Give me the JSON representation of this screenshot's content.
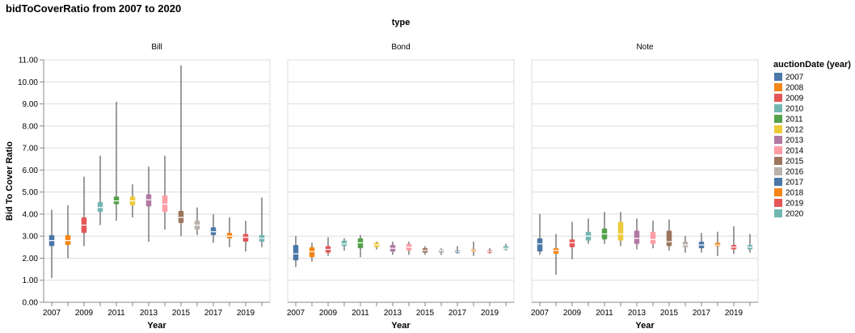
{
  "chart_data": {
    "type": "boxplot",
    "title": "bidToCoverRatio from 2007 to 2020",
    "facet_title": "type",
    "facets": [
      "Bill",
      "Bond",
      "Note"
    ],
    "xlabel": "Year",
    "ylabel": "Bid To Cover Ratio",
    "ylim": [
      0,
      11
    ],
    "y_ticks": [
      "0.00",
      "1.00",
      "2.00",
      "3.00",
      "4.00",
      "5.00",
      "6.00",
      "7.00",
      "8.00",
      "9.00",
      "10.00",
      "11.00"
    ],
    "x_tick_labels": [
      "2007",
      "2009",
      "2011",
      "2013",
      "2015",
      "2017",
      "2019"
    ],
    "grid": true,
    "legend": {
      "title": "auctionDate (year)",
      "position": "right",
      "items": [
        "2007",
        "2008",
        "2009",
        "2010",
        "2011",
        "2012",
        "2013",
        "2014",
        "2015",
        "2016",
        "2017",
        "2018",
        "2019",
        "2020"
      ]
    },
    "colors": {
      "2007": "#4c78a8",
      "2008": "#f58518",
      "2009": "#e45756",
      "2010": "#72b7b2",
      "2011": "#54a24b",
      "2012": "#eeca3b",
      "2013": "#b279a2",
      "2014": "#ff9da6",
      "2015": "#9d755d",
      "2016": "#bab0ac",
      "2017": "#4c78a8",
      "2018": "#f58518",
      "2019": "#e45756",
      "2020": "#72b7b2"
    },
    "years": [
      2007,
      2008,
      2009,
      2010,
      2011,
      2012,
      2013,
      2014,
      2015,
      2016,
      2017,
      2018,
      2019,
      2020
    ],
    "series": [
      {
        "name": "Bill",
        "boxes": [
          {
            "year": 2007,
            "min": 1.1,
            "q1": 2.55,
            "median": 2.8,
            "q3": 3.05,
            "max": 4.2
          },
          {
            "year": 2008,
            "min": 2.0,
            "q1": 2.6,
            "median": 2.8,
            "q3": 3.05,
            "max": 4.4
          },
          {
            "year": 2009,
            "min": 2.55,
            "q1": 3.15,
            "median": 3.5,
            "q3": 3.85,
            "max": 5.7
          },
          {
            "year": 2010,
            "min": 3.5,
            "q1": 4.1,
            "median": 4.3,
            "q3": 4.55,
            "max": 6.65
          },
          {
            "year": 2011,
            "min": 3.7,
            "q1": 4.45,
            "median": 4.6,
            "q3": 4.8,
            "max": 9.1
          },
          {
            "year": 2012,
            "min": 3.85,
            "q1": 4.4,
            "median": 4.6,
            "q3": 4.8,
            "max": 5.35
          },
          {
            "year": 2013,
            "min": 2.75,
            "q1": 4.35,
            "median": 4.65,
            "q3": 4.9,
            "max": 6.15
          },
          {
            "year": 2014,
            "min": 3.3,
            "q1": 4.1,
            "median": 4.45,
            "q3": 4.85,
            "max": 6.65
          },
          {
            "year": 2015,
            "min": 3.0,
            "q1": 3.6,
            "median": 3.85,
            "q3": 4.15,
            "max": 10.75
          },
          {
            "year": 2016,
            "min": 3.05,
            "q1": 3.3,
            "median": 3.5,
            "q3": 3.7,
            "max": 4.3
          },
          {
            "year": 2017,
            "min": 2.7,
            "q1": 3.05,
            "median": 3.2,
            "q3": 3.4,
            "max": 4.0
          },
          {
            "year": 2018,
            "min": 2.5,
            "q1": 2.9,
            "median": 3.0,
            "q3": 3.15,
            "max": 3.85
          },
          {
            "year": 2019,
            "min": 2.3,
            "q1": 2.75,
            "median": 2.95,
            "q3": 3.1,
            "max": 3.7
          },
          {
            "year": 2020,
            "min": 2.5,
            "q1": 2.75,
            "median": 2.9,
            "q3": 3.05,
            "max": 4.75
          }
        ]
      },
      {
        "name": "Bond",
        "boxes": [
          {
            "year": 2007,
            "min": 1.6,
            "q1": 1.9,
            "median": 2.2,
            "q3": 2.6,
            "max": 3.0
          },
          {
            "year": 2008,
            "min": 1.85,
            "q1": 2.05,
            "median": 2.3,
            "q3": 2.5,
            "max": 2.7
          },
          {
            "year": 2009,
            "min": 2.1,
            "q1": 2.25,
            "median": 2.4,
            "q3": 2.55,
            "max": 2.95
          },
          {
            "year": 2010,
            "min": 2.35,
            "q1": 2.55,
            "median": 2.65,
            "q3": 2.8,
            "max": 2.9
          },
          {
            "year": 2011,
            "min": 2.05,
            "q1": 2.45,
            "median": 2.7,
            "q3": 2.9,
            "max": 3.05
          },
          {
            "year": 2012,
            "min": 2.4,
            "q1": 2.5,
            "median": 2.6,
            "q3": 2.7,
            "max": 2.75
          },
          {
            "year": 2013,
            "min": 2.15,
            "q1": 2.3,
            "median": 2.45,
            "q3": 2.6,
            "max": 2.75
          },
          {
            "year": 2014,
            "min": 2.15,
            "q1": 2.35,
            "median": 2.5,
            "q3": 2.65,
            "max": 2.75
          },
          {
            "year": 2015,
            "min": 2.15,
            "q1": 2.25,
            "median": 2.35,
            "q3": 2.45,
            "max": 2.55
          },
          {
            "year": 2016,
            "min": 2.15,
            "q1": 2.25,
            "median": 2.35,
            "q3": 2.4,
            "max": 2.45
          },
          {
            "year": 2017,
            "min": 2.2,
            "q1": 2.25,
            "median": 2.3,
            "q3": 2.35,
            "max": 2.55
          },
          {
            "year": 2018,
            "min": 2.1,
            "q1": 2.3,
            "median": 2.35,
            "q3": 2.4,
            "max": 2.75
          },
          {
            "year": 2019,
            "min": 2.2,
            "q1": 2.25,
            "median": 2.3,
            "q3": 2.35,
            "max": 2.45
          },
          {
            "year": 2020,
            "min": 2.35,
            "q1": 2.4,
            "median": 2.45,
            "q3": 2.55,
            "max": 2.65
          }
        ]
      },
      {
        "name": "Note",
        "boxes": [
          {
            "year": 2007,
            "min": 2.15,
            "q1": 2.3,
            "median": 2.65,
            "q3": 2.9,
            "max": 4.0
          },
          {
            "year": 2008,
            "min": 1.25,
            "q1": 2.2,
            "median": 2.35,
            "q3": 2.45,
            "max": 3.1
          },
          {
            "year": 2009,
            "min": 1.95,
            "q1": 2.5,
            "median": 2.7,
            "q3": 2.85,
            "max": 3.65
          },
          {
            "year": 2010,
            "min": 2.65,
            "q1": 2.8,
            "median": 3.0,
            "q3": 3.2,
            "max": 3.8
          },
          {
            "year": 2011,
            "min": 2.65,
            "q1": 2.85,
            "median": 3.1,
            "q3": 3.35,
            "max": 4.1
          },
          {
            "year": 2012,
            "min": 2.55,
            "q1": 2.8,
            "median": 3.1,
            "q3": 3.65,
            "max": 4.1
          },
          {
            "year": 2013,
            "min": 2.4,
            "q1": 2.65,
            "median": 2.9,
            "q3": 3.25,
            "max": 3.8
          },
          {
            "year": 2014,
            "min": 2.45,
            "q1": 2.65,
            "median": 2.85,
            "q3": 3.2,
            "max": 3.7
          },
          {
            "year": 2015,
            "min": 2.35,
            "q1": 2.55,
            "median": 2.75,
            "q3": 3.25,
            "max": 3.75
          },
          {
            "year": 2016,
            "min": 2.25,
            "q1": 2.5,
            "median": 2.6,
            "q3": 2.75,
            "max": 3.0
          },
          {
            "year": 2017,
            "min": 2.25,
            "q1": 2.45,
            "median": 2.6,
            "q3": 2.75,
            "max": 3.15
          },
          {
            "year": 2018,
            "min": 2.1,
            "q1": 2.55,
            "median": 2.6,
            "q3": 2.7,
            "max": 3.2
          },
          {
            "year": 2019,
            "min": 2.2,
            "q1": 2.4,
            "median": 2.5,
            "q3": 2.6,
            "max": 3.45
          },
          {
            "year": 2020,
            "min": 2.25,
            "q1": 2.4,
            "median": 2.5,
            "q3": 2.6,
            "max": 3.1
          }
        ]
      }
    ]
  }
}
